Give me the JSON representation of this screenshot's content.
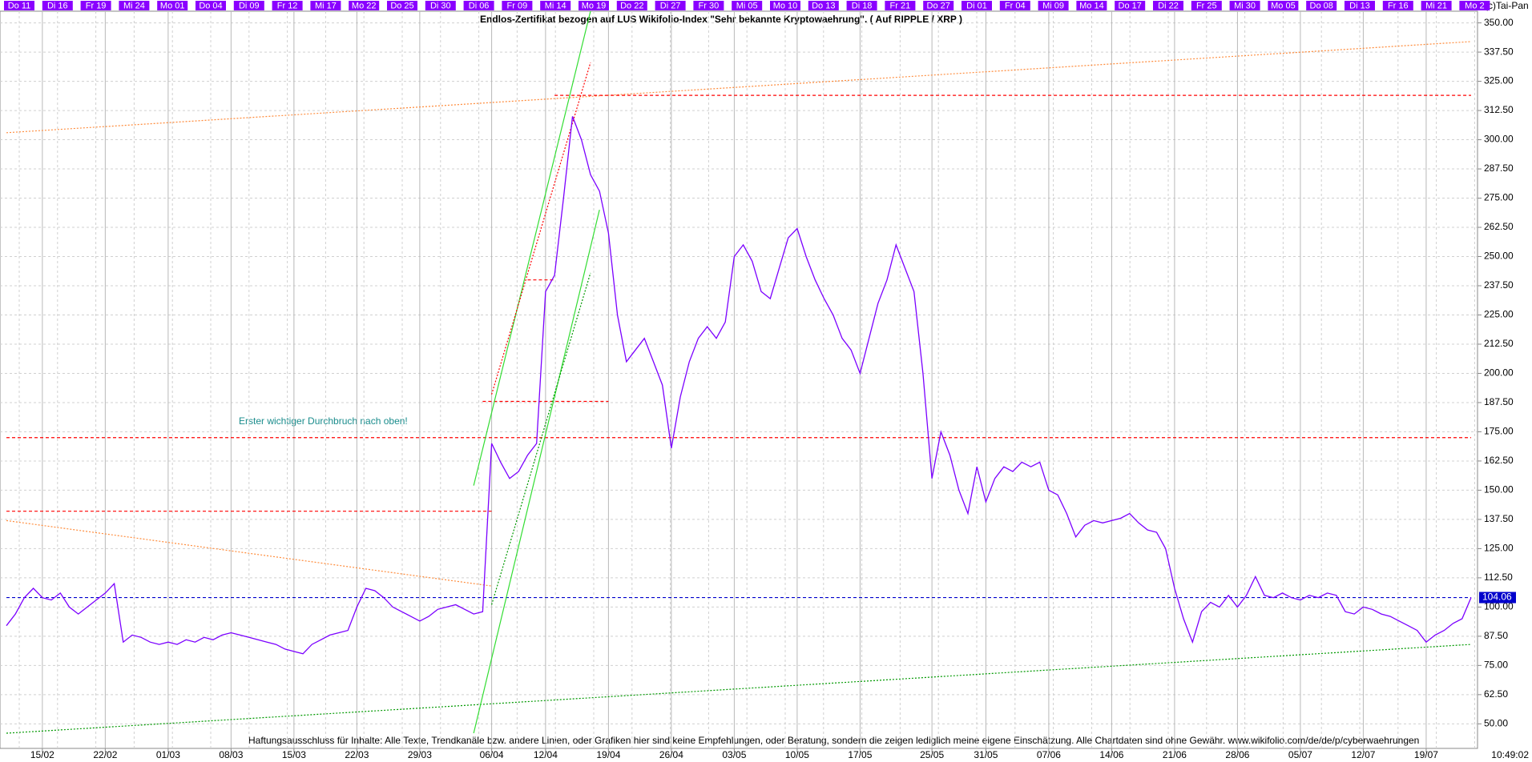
{
  "chart_data": {
    "type": "line",
    "title": "Endlos-Zertifikat bezogen auf LUS Wikifolio-Index \"Sehr bekannte Kryptowaehrung\". ( Auf RIPPLE / XRP )",
    "copyright": "(c)Tai-Pan",
    "annotation": "Erster wichtiger Durchbruch nach oben!",
    "disclaimer": "Haftungsausschluss für Inhalte: Alle Texte, Trendkanäle bzw. andere Linien, oder Grafiken hier sind keine Empfehlungen, oder Beratung, sondern die zeigen lediglich meine eigene Einschätzung. Alle Chartdaten sind ohne Gewähr.  www.wikifolio.com/de/de/p/cyberwaehrungen",
    "time_label": "10:49:02",
    "color": "#7b00ff",
    "grid": true,
    "top_labels": [
      "Do 11",
      "Di 16",
      "Fr 19",
      "Mi 24",
      "Mo 01",
      "Do 04",
      "Di 09",
      "Fr 12",
      "Mi 17",
      "Mo 22",
      "Do 25",
      "Di 30",
      "Di 06",
      "Fr 09",
      "Mi 14",
      "Mo 19",
      "Do 22",
      "Di 27",
      "Fr 30",
      "Mi 05",
      "Mo 10",
      "Do 13",
      "Di 18",
      "Fr 21",
      "Do 27",
      "Di 01",
      "Fr 04",
      "Mi 09",
      "Mo 14",
      "Do 17",
      "Di 22",
      "Fr 25",
      "Mi 30",
      "Mo 05",
      "Do 08",
      "Di 13",
      "Fr 16",
      "Mi 21",
      "Mo 2"
    ],
    "categories": [
      "11/02",
      "12/02",
      "13/02",
      "14/02",
      "15/02",
      "16/02",
      "17/02",
      "18/02",
      "19/02",
      "20/02",
      "21/02",
      "22/02",
      "23/02",
      "24/02",
      "25/02",
      "26/02",
      "27/02",
      "28/02",
      "01/03",
      "02/03",
      "03/03",
      "04/03",
      "05/03",
      "06/03",
      "07/03",
      "08/03",
      "09/03",
      "10/03",
      "11/03",
      "12/03",
      "13/03",
      "14/03",
      "15/03",
      "16/03",
      "17/03",
      "18/03",
      "19/03",
      "20/03",
      "21/03",
      "22/03",
      "23/03",
      "24/03",
      "25/03",
      "26/03",
      "27/03",
      "28/03",
      "29/03",
      "30/03",
      "31/03",
      "01/04",
      "02/04",
      "03/04",
      "04/04",
      "05/04",
      "06/04",
      "07/04",
      "08/04",
      "09/04",
      "10/04",
      "11/04",
      "12/04",
      "13/04",
      "14/04",
      "15/04",
      "16/04",
      "17/04",
      "18/04",
      "19/04",
      "20/04",
      "21/04",
      "22/04",
      "23/04",
      "24/04",
      "25/04",
      "26/04",
      "27/04",
      "28/04",
      "29/04",
      "30/04",
      "01/05",
      "02/05",
      "03/05",
      "04/05",
      "05/05",
      "06/05",
      "07/05",
      "08/05",
      "09/05",
      "10/05",
      "11/05",
      "12/05",
      "13/05",
      "14/05",
      "15/05",
      "16/05",
      "17/05",
      "18/05",
      "19/05",
      "20/05",
      "21/05",
      "22/05",
      "23/05",
      "24/05",
      "25/05",
      "26/05",
      "27/05",
      "28/05",
      "29/05",
      "30/05",
      "31/05",
      "01/06",
      "02/06",
      "03/06",
      "04/06",
      "05/06",
      "06/06",
      "07/06",
      "08/06",
      "09/06",
      "10/06",
      "11/06",
      "12/06",
      "13/06",
      "14/06",
      "15/06",
      "16/06",
      "17/06",
      "18/06",
      "19/06",
      "20/06",
      "21/06",
      "22/06",
      "23/06",
      "24/06",
      "25/06",
      "26/06",
      "27/06",
      "28/06",
      "29/06",
      "30/06",
      "01/07",
      "02/07",
      "03/07",
      "04/07",
      "05/07",
      "06/07",
      "07/07",
      "08/07",
      "09/07",
      "10/07",
      "11/07",
      "12/07",
      "13/07",
      "14/07",
      "15/07",
      "16/07",
      "17/07",
      "18/07",
      "19/07",
      "20/07",
      "21/07",
      "22/07",
      "23/07",
      "24/07"
    ],
    "values": [
      92,
      97,
      104,
      108,
      104,
      103,
      106,
      100,
      97,
      100,
      103,
      106,
      110,
      85,
      88,
      87,
      85,
      84,
      85,
      84,
      86,
      85,
      87,
      86,
      88,
      89,
      88,
      87,
      86,
      85,
      84,
      82,
      81,
      80,
      84,
      86,
      88,
      89,
      90,
      100,
      108,
      107,
      104,
      100,
      98,
      96,
      94,
      96,
      99,
      100,
      101,
      99,
      97,
      98,
      170,
      162,
      155,
      158,
      165,
      170,
      235,
      242,
      275,
      310,
      300,
      285,
      278,
      260,
      225,
      205,
      210,
      215,
      205,
      195,
      168,
      190,
      205,
      215,
      220,
      215,
      222,
      250,
      255,
      248,
      235,
      232,
      245,
      258,
      262,
      250,
      240,
      232,
      225,
      215,
      210,
      200,
      215,
      230,
      240,
      255,
      245,
      235,
      200,
      155,
      175,
      165,
      150,
      140,
      160,
      145,
      155,
      160,
      158,
      162,
      160,
      162,
      150,
      148,
      140,
      130,
      135,
      137,
      136,
      137,
      138,
      140,
      136,
      133,
      132,
      125,
      108,
      95,
      85,
      98,
      102,
      100,
      105,
      100,
      105,
      113,
      105,
      104,
      106,
      104,
      103,
      105,
      104,
      106,
      105,
      98,
      97,
      100,
      99,
      97,
      96,
      94,
      92,
      90,
      85,
      88,
      90,
      93,
      95,
      104.06
    ],
    "xticks": [
      "15/02",
      "22/02",
      "01/03",
      "08/03",
      "15/03",
      "22/03",
      "29/03",
      "06/04",
      "12/04",
      "19/04",
      "26/04",
      "03/05",
      "10/05",
      "17/05",
      "25/05",
      "31/05",
      "07/06",
      "14/06",
      "21/06",
      "28/06",
      "05/07",
      "12/07",
      "19/07"
    ],
    "ylim": [
      39.5,
      355
    ],
    "yticks": [
      {
        "value": 50,
        "label": "50.00"
      },
      {
        "value": 62.5,
        "label": "62.50"
      },
      {
        "value": 75,
        "label": "75.00"
      },
      {
        "value": 87.5,
        "label": "87.50"
      },
      {
        "value": 100,
        "label": "100.00"
      },
      {
        "value": 112.5,
        "label": "112.50"
      },
      {
        "value": 125,
        "label": "125.00"
      },
      {
        "value": 137.5,
        "label": "137.50"
      },
      {
        "value": 150,
        "label": "150.00"
      },
      {
        "value": 162.5,
        "label": "162.50"
      },
      {
        "value": 175,
        "label": "175.00"
      },
      {
        "value": 187.5,
        "label": "187.50"
      },
      {
        "value": 200,
        "label": "200.00"
      },
      {
        "value": 212.5,
        "label": "212.50"
      },
      {
        "value": 225,
        "label": "225.00"
      },
      {
        "value": 237.5,
        "label": "237.50"
      },
      {
        "value": 250,
        "label": "250.00"
      },
      {
        "value": 262.5,
        "label": "262.50"
      },
      {
        "value": 275,
        "label": "275.00"
      },
      {
        "value": 287.5,
        "label": "287.50"
      },
      {
        "value": 300,
        "label": "300.00"
      },
      {
        "value": 312.5,
        "label": "312.50"
      },
      {
        "value": 325,
        "label": "325.00"
      },
      {
        "value": 337.5,
        "label": "337.50"
      },
      {
        "value": 350,
        "label": "350.00"
      }
    ],
    "lines": [
      {
        "color": "#ff8c3c",
        "dash": "dotted",
        "x": [
          "11/02",
          "24/07"
        ],
        "y": [
          303,
          342
        ]
      },
      {
        "color": "#ff8c3c",
        "dash": "dotted",
        "x": [
          "11/02",
          "06/04"
        ],
        "y": [
          137,
          109
        ]
      },
      {
        "color": "#009900",
        "dash": "dotted",
        "x": [
          "11/02",
          "24/07"
        ],
        "y": [
          46,
          84
        ]
      },
      {
        "color": "#ff0000",
        "dash": "dashed",
        "x": [
          "13/04",
          "24/07"
        ],
        "y": [
          319,
          319
        ]
      },
      {
        "color": "#ff0000",
        "dash": "dashed",
        "x": [
          "11/02",
          "24/07"
        ],
        "y": [
          172.5,
          172.5
        ]
      },
      {
        "color": "#ff0000",
        "dash": "dashed",
        "x": [
          "11/02",
          "06/04"
        ],
        "y": [
          141,
          141
        ]
      },
      {
        "color": "#ff0000",
        "dash": "dashed",
        "x": [
          "05/04",
          "19/04"
        ],
        "y": [
          188,
          188
        ]
      },
      {
        "color": "#ff0000",
        "dash": "dashed",
        "x": [
          "10/04",
          "13/04"
        ],
        "y": [
          240,
          240
        ]
      },
      {
        "color": "#0000cc",
        "dash": "dashed",
        "x": [
          "11/02",
          "24/07"
        ],
        "y": [
          104.06,
          104.06
        ]
      },
      {
        "color": "#33dd33",
        "dash": "solid",
        "x": [
          "04/04",
          "17/04"
        ],
        "y": [
          152,
          355
        ]
      },
      {
        "color": "#33dd33",
        "dash": "solid",
        "x": [
          "04/04",
          "18/04"
        ],
        "y": [
          46,
          270
        ]
      },
      {
        "color": "#ff0000",
        "dash": "dotted",
        "x": [
          "06/04",
          "17/04"
        ],
        "y": [
          191,
          333
        ]
      },
      {
        "color": "#009900",
        "dash": "dotted",
        "x": [
          "06/04",
          "17/04"
        ],
        "y": [
          101,
          243
        ]
      }
    ]
  }
}
